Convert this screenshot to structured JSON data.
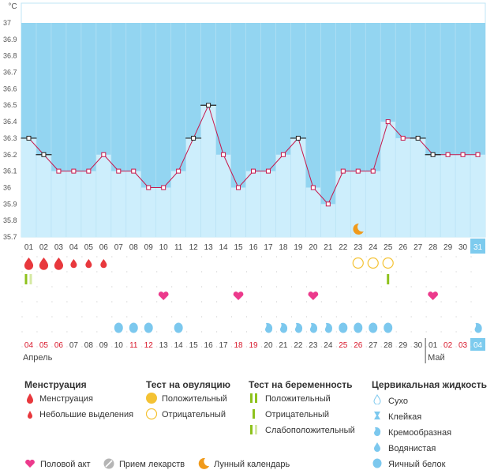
{
  "chart_data": {
    "type": "line",
    "unit_label": "°C",
    "ylim": [
      35.7,
      37.0
    ],
    "y_ticks": [
      "37",
      "36.9",
      "36.8",
      "36.7",
      "36.6",
      "36.5",
      "36.4",
      "36.3",
      "36.2",
      "36.1",
      "36",
      "35.9",
      "35.8",
      "35.7"
    ],
    "cycle_days": [
      "01",
      "02",
      "03",
      "04",
      "05",
      "06",
      "07",
      "08",
      "09",
      "10",
      "11",
      "12",
      "13",
      "14",
      "15",
      "16",
      "17",
      "18",
      "19",
      "20",
      "21",
      "22",
      "23",
      "24",
      "25",
      "26",
      "27",
      "28",
      "29",
      "30",
      "31"
    ],
    "temperatures": [
      36.3,
      36.2,
      36.1,
      36.1,
      36.1,
      36.2,
      36.1,
      36.1,
      36.0,
      36.0,
      36.1,
      36.3,
      36.5,
      36.2,
      36.0,
      36.1,
      36.1,
      36.2,
      36.3,
      36.0,
      35.9,
      36.1,
      36.1,
      36.1,
      36.4,
      36.3,
      36.3,
      36.2,
      36.2,
      36.2,
      36.2
    ],
    "coverline_days": [
      1,
      2,
      12,
      13,
      19,
      27,
      28
    ],
    "shaded_level": 36.1,
    "dates": [
      "04",
      "05",
      "06",
      "07",
      "08",
      "09",
      "10",
      "11",
      "12",
      "13",
      "14",
      "15",
      "16",
      "17",
      "18",
      "19",
      "20",
      "21",
      "22",
      "23",
      "24",
      "25",
      "26",
      "27",
      "28",
      "29",
      "30",
      "01",
      "02",
      "03",
      "04"
    ],
    "date_colors": [
      "red",
      "red",
      "red",
      "black",
      "black",
      "black",
      "black",
      "red",
      "red",
      "black",
      "black",
      "black",
      "black",
      "black",
      "red",
      "red",
      "black",
      "black",
      "black",
      "black",
      "black",
      "red",
      "red",
      "black",
      "black",
      "black",
      "black",
      "black",
      "red",
      "red",
      "black"
    ],
    "month_labels": [
      "Апрель",
      "Май"
    ],
    "month_start_index": [
      0,
      27
    ],
    "highlighted_day": 31,
    "rows": {
      "menstruation": [
        "heavy",
        "heavy",
        "heavy",
        "light",
        "light",
        "light",
        "",
        "",
        "",
        "",
        "",
        "",
        "",
        "",
        "",
        "",
        "",
        "",
        "",
        "",
        "",
        "",
        "",
        "",
        "",
        "",
        "",
        "",
        "",
        "",
        ""
      ],
      "ovulation_test": [
        "",
        "",
        "",
        "",
        "",
        "",
        "",
        "",
        "",
        "",
        "",
        "",
        "",
        "",
        "",
        "",
        "",
        "",
        "",
        "",
        "",
        "",
        "negative",
        "negative",
        "negative",
        "",
        "",
        "",
        "",
        "",
        ""
      ],
      "pregnancy_test": [
        "weak",
        "",
        "",
        "",
        "",
        "",
        "",
        "",
        "",
        "",
        "",
        "",
        "",
        "",
        "",
        "",
        "",
        "",
        "",
        "",
        "",
        "",
        "",
        "",
        "positive",
        "",
        "",
        "",
        "",
        "",
        ""
      ],
      "intercourse": [
        "",
        "",
        "",
        "",
        "",
        "",
        "",
        "",
        "",
        "yes",
        "",
        "",
        "",
        "",
        "yes",
        "",
        "",
        "",
        "",
        "yes",
        "",
        "",
        "",
        "",
        "",
        "",
        "",
        "yes",
        "",
        "",
        ""
      ],
      "cervical": [
        "",
        "",
        "",
        "",
        "",
        "",
        "eggwhite",
        "eggwhite",
        "eggwhite",
        "",
        "eggwhite",
        "",
        "",
        "",
        "",
        "",
        "creamy",
        "creamy",
        "creamy",
        "creamy",
        "creamy",
        "eggwhite",
        "eggwhite",
        "eggwhite",
        "eggwhite",
        "",
        "",
        "",
        "",
        "",
        "creamy"
      ],
      "lunar": [
        "",
        "",
        "",
        "",
        "",
        "",
        "",
        "",
        "",
        "",
        "",
        "",
        "",
        "",
        "",
        "",
        "",
        "",
        "",
        "",
        "",
        "",
        "moon",
        "",
        "",
        "",
        "",
        "",
        "",
        "",
        ""
      ]
    }
  },
  "legend": {
    "menstruation": {
      "title": "Менструация",
      "items": [
        "Менструация",
        "Небольшие выделения"
      ]
    },
    "ovulation": {
      "title": "Тест на овуляцию",
      "items": [
        "Положительный",
        "Отрицательный"
      ]
    },
    "pregnancy": {
      "title": "Тест на беременность",
      "items": [
        "Положительный",
        "Отрицательный",
        "Слабоположительный"
      ]
    },
    "cervical": {
      "title": "Цервикальная жидкость",
      "items": [
        "Сухо",
        "Клейкая",
        "Кремообразная",
        "Водянистая",
        "Яичный белок"
      ]
    },
    "bottom": [
      "Половой акт",
      "Прием лекарств",
      "Лунный календарь"
    ]
  },
  "colors": {
    "chart_bg": "#93d5f1",
    "chart_fill": "#cdeefc",
    "line": "#c8174b",
    "red": "#e8383d",
    "pink": "#ec3a8c",
    "green": "#8ec21d",
    "yellow": "#f4c233",
    "orange": "#f09a1b",
    "drop_blue": "#7cc8ee",
    "highlight": "#7dcbee"
  }
}
